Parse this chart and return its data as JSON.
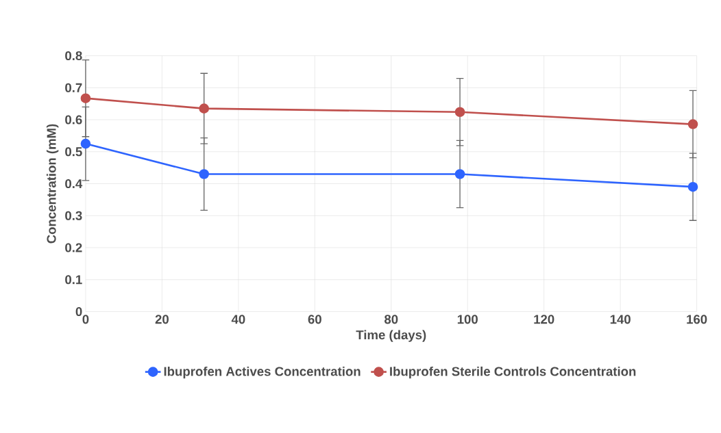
{
  "chart_data": {
    "type": "line",
    "xlabel": "Time (days)",
    "ylabel": "Concentration (mM)",
    "x": [
      0,
      31,
      98,
      159
    ],
    "series": [
      {
        "name": "Ibuprofen Actives Concentration",
        "color": "#2e64fe",
        "values": [
          0.525,
          0.43,
          0.43,
          0.39
        ],
        "errors": [
          0.115,
          0.113,
          0.105,
          0.105
        ]
      },
      {
        "name": "Ibuprofen Sterile Controls Concentration",
        "color": "#c0504d",
        "values": [
          0.667,
          0.635,
          0.624,
          0.586
        ],
        "errors": [
          0.12,
          0.11,
          0.105,
          0.105
        ]
      }
    ],
    "xlim": [
      0,
      160
    ],
    "xticks": [
      0,
      20,
      40,
      60,
      80,
      100,
      120,
      140,
      160
    ],
    "ylim": [
      0,
      0.8
    ],
    "yticks": [
      0,
      0.1,
      0.2,
      0.3,
      0.4,
      0.5,
      0.6,
      0.7,
      0.8
    ],
    "grid": true,
    "legend": "bottom",
    "marker": "circle",
    "line_style": "solid"
  }
}
